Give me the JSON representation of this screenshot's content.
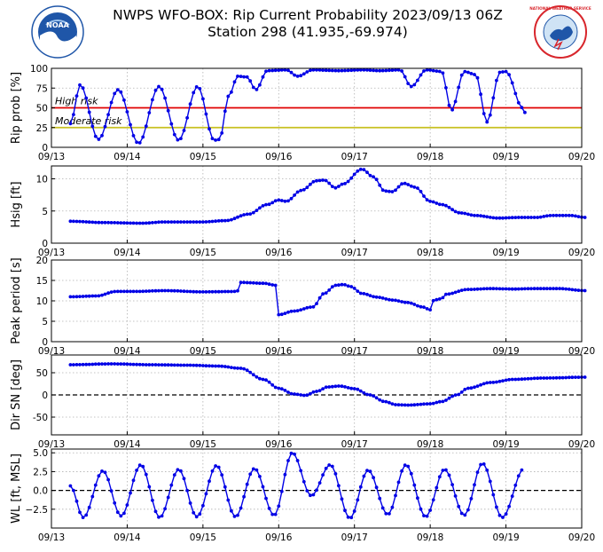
{
  "header": {
    "title_line1": "NWPS WFO-BOX: Rip Current Probability 2023/09/13 06Z",
    "title_line2": "Station 298 (41.935,-69.974)",
    "logo_left_text": "NOAA",
    "logo_right_text": "NATIONAL WEATHER SERVICE"
  },
  "colors": {
    "series": "#0000e6",
    "high_risk": "#e00000",
    "moderate_risk": "#c8c020",
    "grid": "#b0b0b0",
    "noaa_blue": "#1f56a8",
    "nws_red": "#d8262c"
  },
  "chart_data": [
    {
      "type": "line",
      "id": "rip",
      "ylabel": "Rip prob [%]",
      "x_domain": [
        0,
        7
      ],
      "x_tick_labels": [
        "09/13",
        "09/14",
        "09/15",
        "09/16",
        "09/17",
        "09/18",
        "09/19",
        "09/20"
      ],
      "ylim": [
        0,
        100
      ],
      "yticks": [
        0,
        25,
        50,
        75,
        100
      ],
      "grid": true,
      "hlines": [
        {
          "y": 50,
          "color": "#e00000",
          "label": "High risk"
        },
        {
          "y": 25,
          "color": "#c8c020",
          "label": "Moderate risk"
        }
      ],
      "keyframes": [
        [
          0.25,
          30
        ],
        [
          0.38,
          79
        ],
        [
          0.62,
          10
        ],
        [
          0.88,
          73
        ],
        [
          1.15,
          5
        ],
        [
          1.42,
          77
        ],
        [
          1.68,
          9
        ],
        [
          1.93,
          77
        ],
        [
          2.15,
          9
        ],
        [
          2.22,
          10
        ],
        [
          2.34,
          65
        ],
        [
          2.46,
          90
        ],
        [
          2.58,
          89
        ],
        [
          2.7,
          73
        ],
        [
          2.85,
          97
        ],
        [
          3.1,
          98
        ],
        [
          3.25,
          90
        ],
        [
          3.45,
          98
        ],
        [
          3.8,
          97
        ],
        [
          4.1,
          98
        ],
        [
          4.35,
          97
        ],
        [
          4.6,
          98
        ],
        [
          4.75,
          77
        ],
        [
          4.95,
          98
        ],
        [
          5.15,
          96
        ],
        [
          5.28,
          47
        ],
        [
          5.45,
          96
        ],
        [
          5.6,
          92
        ],
        [
          5.75,
          32
        ],
        [
          5.92,
          95
        ],
        [
          6.0,
          96
        ],
        [
          6.22,
          50
        ],
        [
          6.27,
          41
        ]
      ]
    },
    {
      "type": "line",
      "id": "hsig",
      "ylabel": "Hsig [ft]",
      "x_domain": [
        0,
        7
      ],
      "x_tick_labels": [
        "09/13",
        "09/14",
        "09/15",
        "09/16",
        "09/17",
        "09/18",
        "09/19",
        "09/20"
      ],
      "ylim": [
        0,
        12
      ],
      "yticks": [
        0,
        5,
        10
      ],
      "grid": true,
      "keyframes": [
        [
          0.25,
          3.4
        ],
        [
          0.7,
          3.2
        ],
        [
          1.2,
          3.1
        ],
        [
          1.5,
          3.3
        ],
        [
          2.0,
          3.3
        ],
        [
          2.3,
          3.5
        ],
        [
          2.6,
          4.5
        ],
        [
          2.85,
          6.0
        ],
        [
          3.0,
          6.7
        ],
        [
          3.1,
          6.5
        ],
        [
          3.3,
          8.2
        ],
        [
          3.5,
          9.7
        ],
        [
          3.6,
          9.8
        ],
        [
          3.75,
          8.6
        ],
        [
          3.85,
          9.2
        ],
        [
          4.1,
          11.5
        ],
        [
          4.25,
          10.3
        ],
        [
          4.4,
          8.1
        ],
        [
          4.5,
          8.0
        ],
        [
          4.65,
          9.3
        ],
        [
          4.8,
          8.7
        ],
        [
          5.0,
          6.5
        ],
        [
          5.15,
          6.0
        ],
        [
          5.4,
          4.7
        ],
        [
          5.6,
          4.3
        ],
        [
          5.9,
          3.9
        ],
        [
          6.2,
          4.0
        ],
        [
          6.4,
          4.0
        ],
        [
          6.6,
          4.3
        ],
        [
          6.85,
          4.3
        ],
        [
          7.05,
          4.0
        ]
      ]
    },
    {
      "type": "line",
      "id": "period",
      "ylabel": "Peak period [s]",
      "x_domain": [
        0,
        7
      ],
      "x_tick_labels": [
        "09/13",
        "09/14",
        "09/15",
        "09/16",
        "09/17",
        "09/18",
        "09/19",
        "09/20"
      ],
      "ylim": [
        0,
        20
      ],
      "yticks": [
        0,
        5,
        10,
        15,
        20
      ],
      "grid": true,
      "keyframes": [
        [
          0.25,
          11.0
        ],
        [
          0.6,
          11.2
        ],
        [
          0.85,
          12.3
        ],
        [
          1.1,
          12.3
        ],
        [
          1.5,
          12.5
        ],
        [
          2.0,
          12.2
        ],
        [
          2.45,
          12.3
        ],
        [
          2.5,
          14.5
        ],
        [
          2.8,
          14.3
        ],
        [
          2.97,
          13.8
        ],
        [
          3.0,
          6.6
        ],
        [
          3.2,
          7.5
        ],
        [
          3.45,
          8.5
        ],
        [
          3.6,
          11.8
        ],
        [
          3.75,
          13.8
        ],
        [
          3.85,
          14.0
        ],
        [
          3.95,
          13.5
        ],
        [
          4.1,
          11.8
        ],
        [
          4.3,
          10.9
        ],
        [
          4.5,
          10.2
        ],
        [
          4.7,
          9.6
        ],
        [
          4.9,
          8.5
        ],
        [
          5.0,
          7.8
        ],
        [
          5.05,
          10.2
        ],
        [
          5.15,
          10.5
        ],
        [
          5.2,
          11.6
        ],
        [
          5.5,
          12.8
        ],
        [
          5.8,
          13.0
        ],
        [
          6.1,
          12.9
        ],
        [
          6.4,
          13.0
        ],
        [
          6.7,
          13.0
        ],
        [
          7.05,
          12.5
        ]
      ]
    },
    {
      "type": "line",
      "id": "dir",
      "ylabel": "Dir SN [deg]",
      "x_domain": [
        0,
        7
      ],
      "x_tick_labels": [
        "09/13",
        "09/14",
        "09/15",
        "09/16",
        "09/17",
        "09/18",
        "09/19",
        "09/20"
      ],
      "ylim": [
        -90,
        90
      ],
      "yticks": [
        -50,
        0,
        50
      ],
      "grid": true,
      "hlines": [
        {
          "y": 0,
          "color": "#000000",
          "dashed": true
        }
      ],
      "keyframes": [
        [
          0.25,
          68
        ],
        [
          0.8,
          70
        ],
        [
          1.3,
          68
        ],
        [
          1.8,
          67
        ],
        [
          2.2,
          65
        ],
        [
          2.5,
          60
        ],
        [
          2.8,
          35
        ],
        [
          3.0,
          15
        ],
        [
          3.2,
          2
        ],
        [
          3.35,
          -1
        ],
        [
          3.5,
          8
        ],
        [
          3.65,
          18
        ],
        [
          3.8,
          20
        ],
        [
          4.0,
          14
        ],
        [
          4.2,
          0
        ],
        [
          4.4,
          -15
        ],
        [
          4.55,
          -22
        ],
        [
          4.7,
          -23
        ],
        [
          5.0,
          -20
        ],
        [
          5.15,
          -15
        ],
        [
          5.35,
          0
        ],
        [
          5.5,
          15
        ],
        [
          5.8,
          28
        ],
        [
          6.1,
          35
        ],
        [
          6.5,
          38
        ],
        [
          7.05,
          40
        ]
      ]
    },
    {
      "type": "line",
      "id": "wl",
      "ylabel": "WL [ft, MSL]",
      "x_domain": [
        0,
        7
      ],
      "x_tick_labels": [
        "09/13",
        "09/14",
        "09/15",
        "09/16",
        "09/17",
        "09/18",
        "09/19",
        "09/20"
      ],
      "ylim": [
        -5,
        5.5
      ],
      "yticks": [
        -2.5,
        0.0,
        2.5,
        5.0
      ],
      "ytick_labels": [
        "−2.5",
        "0.0",
        "2.5",
        "5.0"
      ],
      "grid": true,
      "hlines": [
        {
          "y": 0,
          "color": "#000000",
          "dashed": true
        }
      ],
      "keyframes": [
        [
          0.25,
          0.6
        ],
        [
          0.42,
          -3.6
        ],
        [
          0.68,
          2.6
        ],
        [
          0.92,
          -3.4
        ],
        [
          1.18,
          3.4
        ],
        [
          1.43,
          -3.6
        ],
        [
          1.68,
          2.8
        ],
        [
          1.92,
          -3.5
        ],
        [
          2.18,
          3.3
        ],
        [
          2.43,
          -3.5
        ],
        [
          2.68,
          2.9
        ],
        [
          2.94,
          -3.3
        ],
        [
          3.18,
          5.0
        ],
        [
          3.43,
          -0.7
        ],
        [
          3.68,
          3.4
        ],
        [
          3.94,
          -3.7
        ],
        [
          4.18,
          2.7
        ],
        [
          4.44,
          -3.2
        ],
        [
          4.68,
          3.4
        ],
        [
          4.94,
          -3.5
        ],
        [
          5.19,
          2.8
        ],
        [
          5.45,
          -3.3
        ],
        [
          5.69,
          3.6
        ],
        [
          5.95,
          -3.6
        ],
        [
          6.24,
          2.9
        ]
      ]
    }
  ]
}
